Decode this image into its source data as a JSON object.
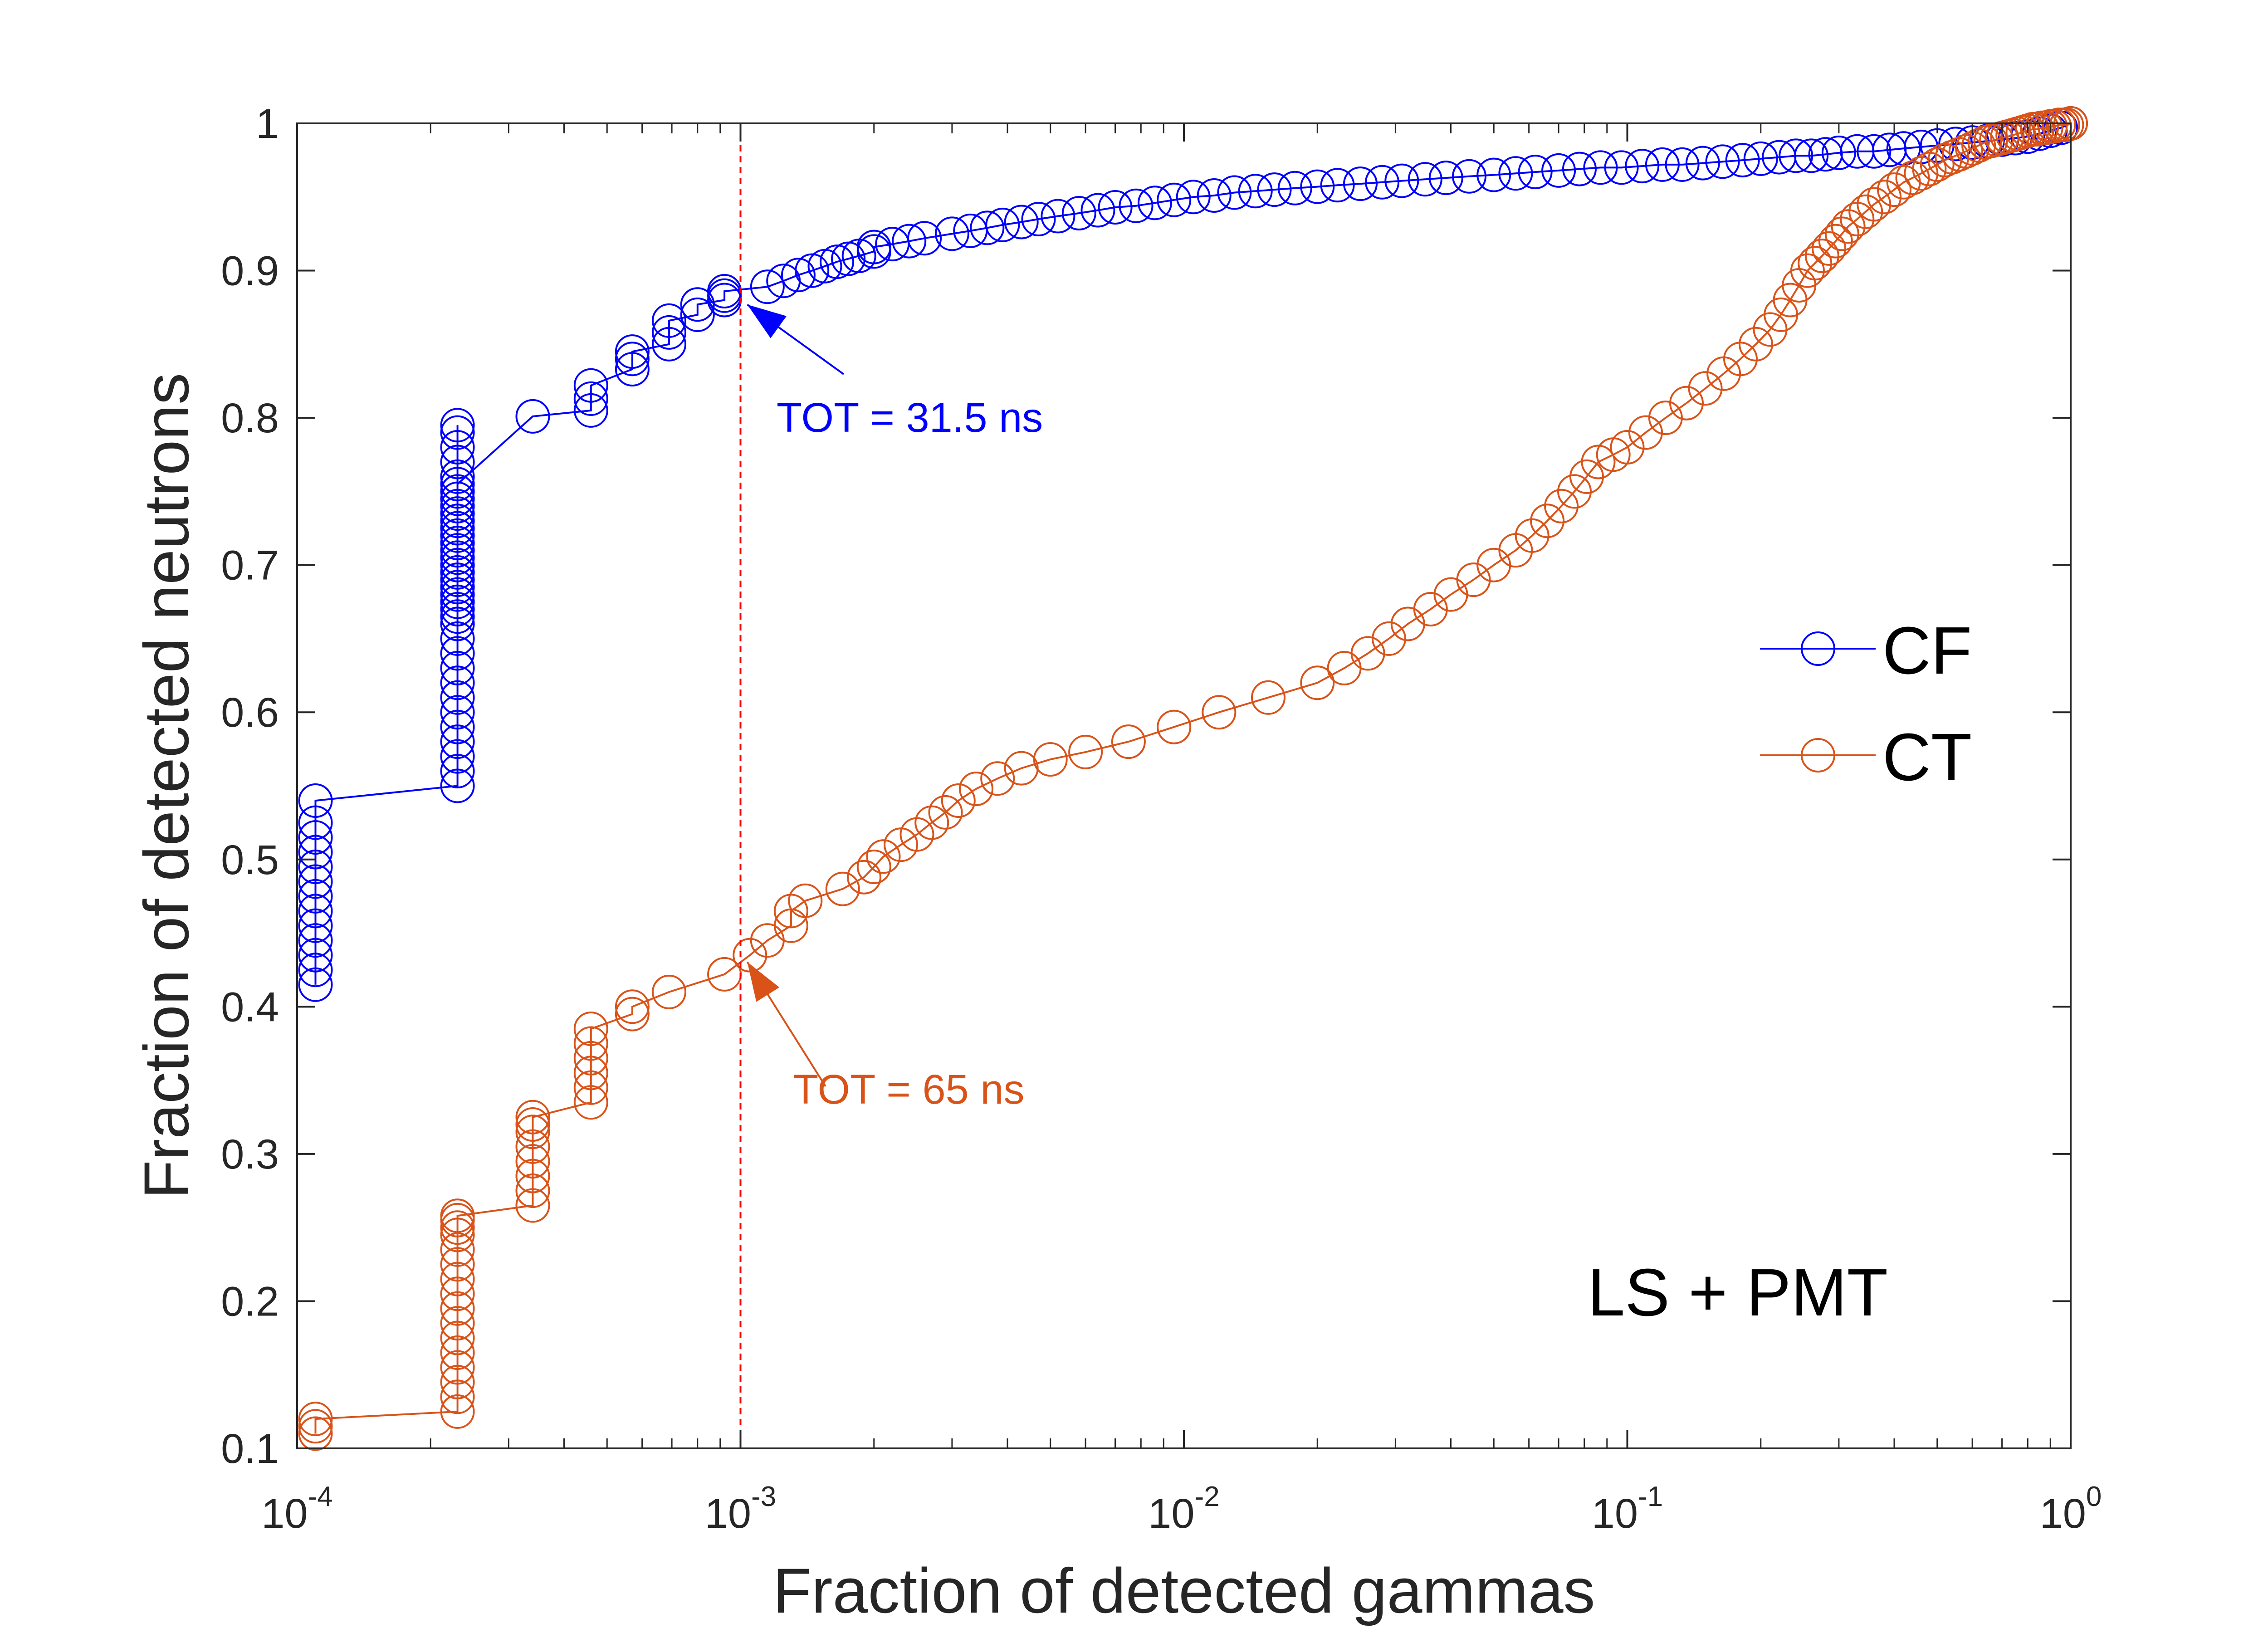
{
  "chart_data": {
    "type": "line",
    "xscale": "log",
    "xlim": [
      0.0001,
      1
    ],
    "ylim": [
      0.1,
      1
    ],
    "xlabel": "Fraction of detected gammas",
    "ylabel": "Fraction of detected neutrons",
    "grid": false,
    "legend_position": "right",
    "x_ticks": [
      {
        "value": 0.0001,
        "base": "10",
        "exp": "-4"
      },
      {
        "value": 0.001,
        "base": "10",
        "exp": "-3"
      },
      {
        "value": 0.01,
        "base": "10",
        "exp": "-2"
      },
      {
        "value": 0.1,
        "base": "10",
        "exp": "-1"
      },
      {
        "value": 1,
        "base": "10",
        "exp": "0"
      }
    ],
    "y_ticks": [
      {
        "value": 0.1,
        "label": "0.1"
      },
      {
        "value": 0.2,
        "label": "0.2"
      },
      {
        "value": 0.3,
        "label": "0.3"
      },
      {
        "value": 0.4,
        "label": "0.4"
      },
      {
        "value": 0.5,
        "label": "0.5"
      },
      {
        "value": 0.6,
        "label": "0.6"
      },
      {
        "value": 0.7,
        "label": "0.7"
      },
      {
        "value": 0.8,
        "label": "0.8"
      },
      {
        "value": 0.9,
        "label": "0.9"
      },
      {
        "value": 1,
        "label": "1"
      }
    ],
    "series": [
      {
        "name": "CF",
        "color": "#0000ff",
        "x": [
          0.00011,
          0.00011,
          0.00011,
          0.00011,
          0.00011,
          0.00011,
          0.00011,
          0.00011,
          0.00011,
          0.00011,
          0.00011,
          0.00011,
          0.00011,
          0.00023,
          0.00023,
          0.00023,
          0.00023,
          0.00023,
          0.00023,
          0.00023,
          0.00023,
          0.00023,
          0.00023,
          0.00023,
          0.00023,
          0.00023,
          0.00023,
          0.00023,
          0.00023,
          0.00023,
          0.00023,
          0.00023,
          0.00023,
          0.00023,
          0.00023,
          0.00023,
          0.00023,
          0.00023,
          0.00023,
          0.00023,
          0.00023,
          0.00023,
          0.00023,
          0.00023,
          0.00023,
          0.00023,
          0.00023,
          0.00023,
          0.00023,
          0.00034,
          0.00046,
          0.00046,
          0.00046,
          0.00057,
          0.00057,
          0.00057,
          0.00069,
          0.00069,
          0.00069,
          0.0008,
          0.0008,
          0.00092,
          0.00092,
          0.00092,
          0.00115,
          0.00125,
          0.00135,
          0.00145,
          0.00155,
          0.00165,
          0.00175,
          0.00185,
          0.002,
          0.002,
          0.0022,
          0.0024,
          0.0026,
          0.003,
          0.0033,
          0.0036,
          0.0039,
          0.0043,
          0.0047,
          0.0052,
          0.0058,
          0.0064,
          0.007,
          0.0078,
          0.0086,
          0.0095,
          0.0105,
          0.0117,
          0.013,
          0.0145,
          0.016,
          0.0178,
          0.02,
          0.0222,
          0.025,
          0.028,
          0.031,
          0.035,
          0.039,
          0.044,
          0.05,
          0.056,
          0.062,
          0.07,
          0.078,
          0.087,
          0.097,
          0.108,
          0.12,
          0.133,
          0.148,
          0.164,
          0.182,
          0.2,
          0.22,
          0.24,
          0.26,
          0.28,
          0.3,
          0.33,
          0.36,
          0.39,
          0.42,
          0.46,
          0.5,
          0.55,
          0.6,
          0.65,
          0.7,
          0.75,
          0.8,
          0.85,
          0.9,
          0.95,
          1.0
        ],
        "y": [
          0.415,
          0.425,
          0.435,
          0.445,
          0.455,
          0.465,
          0.475,
          0.485,
          0.495,
          0.505,
          0.515,
          0.525,
          0.54,
          0.55,
          0.56,
          0.57,
          0.58,
          0.59,
          0.6,
          0.61,
          0.62,
          0.63,
          0.64,
          0.65,
          0.66,
          0.67,
          0.68,
          0.69,
          0.7,
          0.71,
          0.72,
          0.73,
          0.74,
          0.75,
          0.76,
          0.77,
          0.78,
          0.79,
          0.795,
          0.665,
          0.675,
          0.685,
          0.695,
          0.705,
          0.715,
          0.725,
          0.735,
          0.745,
          0.755,
          0.801,
          0.805,
          0.813,
          0.822,
          0.833,
          0.84,
          0.845,
          0.85,
          0.858,
          0.866,
          0.87,
          0.877,
          0.88,
          0.883,
          0.886,
          0.889,
          0.893,
          0.897,
          0.9,
          0.903,
          0.906,
          0.908,
          0.91,
          0.913,
          0.916,
          0.918,
          0.92,
          0.922,
          0.925,
          0.927,
          0.929,
          0.931,
          0.933,
          0.935,
          0.937,
          0.939,
          0.941,
          0.943,
          0.944,
          0.946,
          0.948,
          0.95,
          0.951,
          0.953,
          0.954,
          0.955,
          0.956,
          0.957,
          0.958,
          0.959,
          0.96,
          0.961,
          0.962,
          0.963,
          0.964,
          0.965,
          0.966,
          0.967,
          0.968,
          0.969,
          0.97,
          0.97,
          0.971,
          0.972,
          0.972,
          0.973,
          0.974,
          0.975,
          0.976,
          0.977,
          0.978,
          0.978,
          0.979,
          0.98,
          0.981,
          0.981,
          0.982,
          0.983,
          0.984,
          0.985,
          0.986,
          0.987,
          0.988,
          0.989,
          0.99,
          0.991,
          0.993,
          0.995,
          0.997,
          1.0
        ]
      },
      {
        "name": "CT",
        "color": "#d95319",
        "x": [
          0.00011,
          0.00011,
          0.00011,
          0.00023,
          0.00023,
          0.00023,
          0.00023,
          0.00023,
          0.00023,
          0.00023,
          0.00023,
          0.00023,
          0.00023,
          0.00023,
          0.00023,
          0.00023,
          0.00023,
          0.00023,
          0.00023,
          0.00034,
          0.00034,
          0.00034,
          0.00034,
          0.00034,
          0.00034,
          0.00034,
          0.00034,
          0.00046,
          0.00046,
          0.00046,
          0.00046,
          0.00046,
          0.00046,
          0.00057,
          0.00057,
          0.00069,
          0.00092,
          0.00105,
          0.00115,
          0.0013,
          0.0013,
          0.0014,
          0.0017,
          0.0019,
          0.002,
          0.0021,
          0.0023,
          0.0025,
          0.0027,
          0.0029,
          0.0031,
          0.0034,
          0.0038,
          0.0043,
          0.005,
          0.006,
          0.0075,
          0.0095,
          0.012,
          0.0155,
          0.02,
          0.023,
          0.026,
          0.029,
          0.032,
          0.036,
          0.04,
          0.045,
          0.05,
          0.056,
          0.061,
          0.066,
          0.071,
          0.076,
          0.081,
          0.086,
          0.093,
          0.1,
          0.11,
          0.122,
          0.136,
          0.15,
          0.165,
          0.18,
          0.195,
          0.21,
          0.222,
          0.233,
          0.244,
          0.255,
          0.265,
          0.275,
          0.285,
          0.295,
          0.305,
          0.315,
          0.33,
          0.345,
          0.36,
          0.38,
          0.4,
          0.42,
          0.44,
          0.46,
          0.48,
          0.5,
          0.52,
          0.54,
          0.56,
          0.58,
          0.6,
          0.62,
          0.64,
          0.66,
          0.68,
          0.7,
          0.72,
          0.74,
          0.76,
          0.78,
          0.8,
          0.82,
          0.84,
          0.86,
          0.88,
          0.9,
          0.92,
          0.94,
          0.96,
          0.98,
          1.0
        ],
        "y": [
          0.11,
          0.115,
          0.12,
          0.125,
          0.135,
          0.145,
          0.155,
          0.165,
          0.175,
          0.185,
          0.195,
          0.205,
          0.215,
          0.225,
          0.235,
          0.245,
          0.25,
          0.255,
          0.258,
          0.265,
          0.275,
          0.285,
          0.295,
          0.305,
          0.315,
          0.32,
          0.325,
          0.335,
          0.345,
          0.355,
          0.365,
          0.375,
          0.385,
          0.395,
          0.4,
          0.41,
          0.422,
          0.435,
          0.445,
          0.455,
          0.465,
          0.472,
          0.48,
          0.488,
          0.495,
          0.502,
          0.51,
          0.517,
          0.525,
          0.532,
          0.54,
          0.548,
          0.555,
          0.562,
          0.568,
          0.573,
          0.58,
          0.59,
          0.6,
          0.61,
          0.62,
          0.63,
          0.64,
          0.65,
          0.66,
          0.67,
          0.68,
          0.69,
          0.7,
          0.71,
          0.72,
          0.73,
          0.74,
          0.75,
          0.76,
          0.77,
          0.775,
          0.78,
          0.79,
          0.8,
          0.81,
          0.82,
          0.83,
          0.84,
          0.85,
          0.86,
          0.87,
          0.88,
          0.89,
          0.9,
          0.905,
          0.91,
          0.915,
          0.92,
          0.925,
          0.93,
          0.935,
          0.94,
          0.945,
          0.95,
          0.955,
          0.96,
          0.963,
          0.966,
          0.969,
          0.972,
          0.975,
          0.977,
          0.979,
          0.981,
          0.983,
          0.985,
          0.987,
          0.988,
          0.989,
          0.99,
          0.991,
          0.992,
          0.993,
          0.994,
          0.995,
          0.996,
          0.996,
          0.997,
          0.997,
          0.998,
          0.998,
          0.999,
          0.999,
          0.999,
          1.0
        ]
      }
    ],
    "annotations": [
      {
        "text": "TOT = 31.5 ns",
        "color": "#0000ff",
        "x": 0.001,
        "y": 0.88
      },
      {
        "text": "TOT = 65 ns",
        "color": "#d95319",
        "x": 0.001,
        "y": 0.435
      },
      {
        "text": "LS + PMT",
        "color": "#000000",
        "x": 0.2,
        "y": 0.215
      }
    ],
    "reference_line": {
      "x": 0.001,
      "color": "#ff0000",
      "style": "dashed"
    }
  }
}
